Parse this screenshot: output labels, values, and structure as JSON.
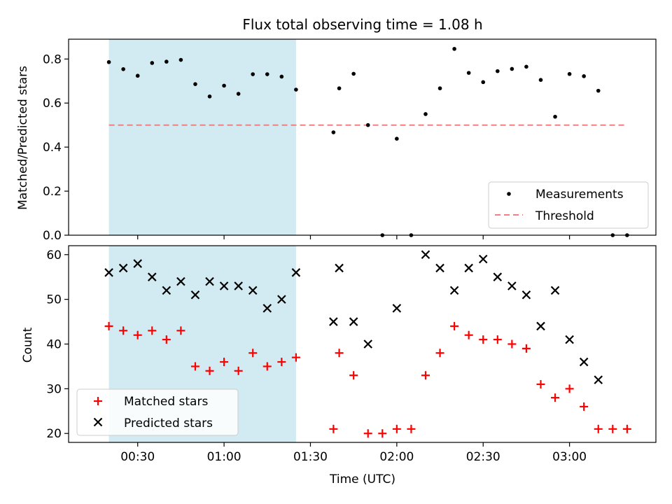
{
  "chart_data": [
    {
      "type": "scatter",
      "title": "Flux total observing time = 1.08 h",
      "xlabel": "",
      "ylabel": "Matched/Predicted stars",
      "ylim": [
        0,
        0.89
      ],
      "yticks": [
        "0.0",
        "0.2",
        "0.4",
        "0.6",
        "0.8"
      ],
      "ytick_values": [
        0,
        0.2,
        0.4,
        0.6,
        0.8
      ],
      "legend_position": "lower-right",
      "shaded_span": {
        "start": "00:20",
        "end": "01:25",
        "color": "#add8e6"
      },
      "series": [
        {
          "name": "Measurements",
          "marker": "dot",
          "color": "#000000",
          "x": [
            "00:20",
            "00:25",
            "00:30",
            "00:35",
            "00:40",
            "00:45",
            "00:50",
            "00:55",
            "01:00",
            "01:05",
            "01:10",
            "01:15",
            "01:20",
            "01:25",
            "01:38",
            "01:40",
            "01:45",
            "01:50",
            "01:55",
            "02:00",
            "02:05",
            "02:10",
            "02:15",
            "02:20",
            "02:25",
            "02:30",
            "02:35",
            "02:40",
            "02:45",
            "02:50",
            "02:55",
            "03:00",
            "03:05",
            "03:10",
            "03:15",
            "03:20"
          ],
          "y": [
            0.786,
            0.754,
            0.724,
            0.782,
            0.788,
            0.796,
            0.686,
            0.63,
            0.679,
            0.642,
            0.731,
            0.731,
            0.72,
            0.661,
            0.467,
            0.667,
            0.733,
            0.5,
            0.0,
            0.438,
            0.0,
            0.55,
            0.667,
            0.846,
            0.737,
            0.695,
            0.745,
            0.755,
            0.765,
            0.705,
            0.538,
            0.732,
            0.722,
            0.656,
            0.0,
            0.0
          ]
        },
        {
          "name": "Threshold",
          "marker": "dashed-line",
          "color": "#f08080",
          "x": [
            "00:20",
            "03:20"
          ],
          "y": [
            0.5,
            0.5
          ]
        }
      ]
    },
    {
      "type": "scatter",
      "title": "",
      "xlabel": "Time (UTC)",
      "ylabel": "Count",
      "ylim": [
        18,
        62
      ],
      "yticks": [
        "20",
        "30",
        "40",
        "50",
        "60"
      ],
      "ytick_values": [
        20,
        30,
        40,
        50,
        60
      ],
      "xticks": [
        "00:30",
        "01:00",
        "01:30",
        "02:00",
        "02:30",
        "03:00"
      ],
      "xtick_values": [
        "00:30",
        "01:00",
        "01:30",
        "02:00",
        "02:30",
        "03:00"
      ],
      "xlim": [
        "00:06",
        "03:30"
      ],
      "legend_position": "lower-left",
      "shaded_span": {
        "start": "00:20",
        "end": "01:25",
        "color": "#add8e6"
      },
      "series": [
        {
          "name": "Matched stars",
          "marker": "plus",
          "color": "#ff0000",
          "x": [
            "00:20",
            "00:25",
            "00:30",
            "00:35",
            "00:40",
            "00:45",
            "00:50",
            "00:55",
            "01:00",
            "01:05",
            "01:10",
            "01:15",
            "01:20",
            "01:25",
            "01:38",
            "01:40",
            "01:45",
            "01:50",
            "01:55",
            "02:00",
            "02:05",
            "02:10",
            "02:15",
            "02:20",
            "02:25",
            "02:30",
            "02:35",
            "02:40",
            "02:45",
            "02:50",
            "02:55",
            "03:00",
            "03:05",
            "03:10",
            "03:15",
            "03:20"
          ],
          "y": [
            44,
            43,
            42,
            43,
            41,
            43,
            35,
            34,
            36,
            34,
            38,
            35,
            36,
            37,
            21,
            38,
            33,
            20,
            20,
            21,
            21,
            33,
            38,
            44,
            42,
            41,
            41,
            40,
            39,
            31,
            28,
            30,
            26,
            21,
            21,
            21
          ]
        },
        {
          "name": "Predicted stars",
          "marker": "x",
          "color": "#000000",
          "x": [
            "00:20",
            "00:25",
            "00:30",
            "00:35",
            "00:40",
            "00:45",
            "00:50",
            "00:55",
            "01:00",
            "01:05",
            "01:10",
            "01:15",
            "01:20",
            "01:25",
            "01:38",
            "01:40",
            "01:45",
            "01:50",
            "02:00",
            "02:10",
            "02:15",
            "02:20",
            "02:25",
            "02:30",
            "02:35",
            "02:40",
            "02:45",
            "02:50",
            "02:55",
            "03:00",
            "03:05",
            "03:10"
          ],
          "y": [
            56,
            57,
            58,
            55,
            52,
            54,
            51,
            54,
            53,
            53,
            52,
            48,
            50,
            56,
            45,
            57,
            45,
            40,
            48,
            60,
            57,
            52,
            57,
            59,
            55,
            53,
            51,
            44,
            52,
            41,
            36,
            32
          ]
        }
      ]
    }
  ]
}
